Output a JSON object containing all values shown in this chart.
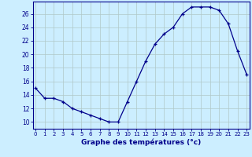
{
  "hours": [
    0,
    1,
    2,
    3,
    4,
    5,
    6,
    7,
    8,
    9,
    10,
    11,
    12,
    13,
    14,
    15,
    16,
    17,
    18,
    19,
    20,
    21,
    22,
    23
  ],
  "temps": [
    15.0,
    13.5,
    13.5,
    13.0,
    12.0,
    11.5,
    11.0,
    10.5,
    10.0,
    10.0,
    13.0,
    16.0,
    19.0,
    21.5,
    23.0,
    24.0,
    26.0,
    27.0,
    27.0,
    27.0,
    26.5,
    24.5,
    20.5,
    17.0
  ],
  "line_color": "#00008B",
  "marker": "+",
  "bg_color": "#cceeff",
  "grid_color": "#b0c8c8",
  "xlabel": "Graphe des températures (°c)",
  "xlabel_color": "#00008B",
  "ylim": [
    9.0,
    27.8
  ],
  "yticks": [
    10,
    12,
    14,
    16,
    18,
    20,
    22,
    24,
    26
  ],
  "xticks": [
    0,
    1,
    2,
    3,
    4,
    5,
    6,
    7,
    8,
    9,
    10,
    11,
    12,
    13,
    14,
    15,
    16,
    17,
    18,
    19,
    20,
    21,
    22,
    23
  ],
  "spine_color": "#00008B",
  "tick_color": "#00008B",
  "xlim": [
    -0.3,
    23.3
  ]
}
